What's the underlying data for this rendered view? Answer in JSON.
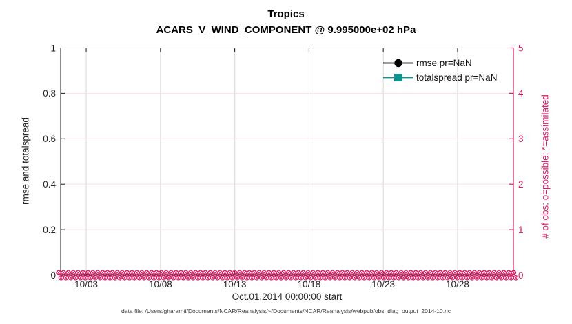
{
  "footer": "data file: /Users/gharamti/Documents/NCAR/Reanalysis/~/Documents/NCAR/Reanalysis/webpub/obs_diag_output_2014-10.nc",
  "chart_data": {
    "type": "line",
    "title": "Tropics",
    "subtitle": "ACARS_V_WIND_COMPONENT @ 9.995000e+02 hPa",
    "xlabel": "Oct.01,2014 00:00:00 start",
    "x_axis": {
      "tick_labels": [
        "10/03",
        "10/08",
        "10/13",
        "10/18",
        "10/23",
        "10/28"
      ],
      "tick_days": [
        3,
        8,
        13,
        18,
        23,
        28
      ],
      "range_days": [
        1.28,
        31.76
      ]
    },
    "left_axis": {
      "label": "rmse and totalspread",
      "tick_labels": [
        "0",
        "0.2",
        "0.4",
        "0.6",
        "0.8",
        "1"
      ],
      "tick_values": [
        0,
        0.2,
        0.4,
        0.6,
        0.8,
        1
      ],
      "range": [
        0,
        1
      ],
      "color": "#262626"
    },
    "right_axis": {
      "label": "# of obs: o=possible; *=assimilated",
      "tick_labels": [
        "0",
        "1",
        "2",
        "3",
        "4",
        "5"
      ],
      "tick_values": [
        0,
        1,
        2,
        3,
        4,
        5
      ],
      "range": [
        0,
        5
      ],
      "color": "#dc1a66"
    },
    "grid": {
      "visible": true,
      "vertical_color": "#d9d9d9",
      "horizontal_color": "#fadde9"
    },
    "axis_box_color": "#1a1a1a",
    "series": [
      {
        "name": "rmse pr=NaN",
        "color": "#000000",
        "marker": "filled-circle",
        "axis": "left",
        "values": [],
        "note": "all values NaN, no curve drawn"
      },
      {
        "name": "totalspread pr=NaN",
        "color": "#0f918c",
        "marker": "filled-square",
        "axis": "left",
        "values": [],
        "note": "all values NaN, no curve drawn"
      },
      {
        "name": "obs possible (o)",
        "color": "#dc1a66",
        "marker": "o",
        "axis": "right",
        "constant_value": 0,
        "note": "dense markers at 0 along entire time axis"
      },
      {
        "name": "obs assimilated (*)",
        "color": "#dc1a66",
        "marker": "*",
        "axis": "right",
        "constant_value": 0,
        "note": "dense markers at 0 along entire time axis"
      }
    ],
    "legend": {
      "position": "top-right-inside",
      "box": false,
      "entries": [
        "rmse pr=NaN",
        "totalspread pr=NaN"
      ]
    }
  }
}
